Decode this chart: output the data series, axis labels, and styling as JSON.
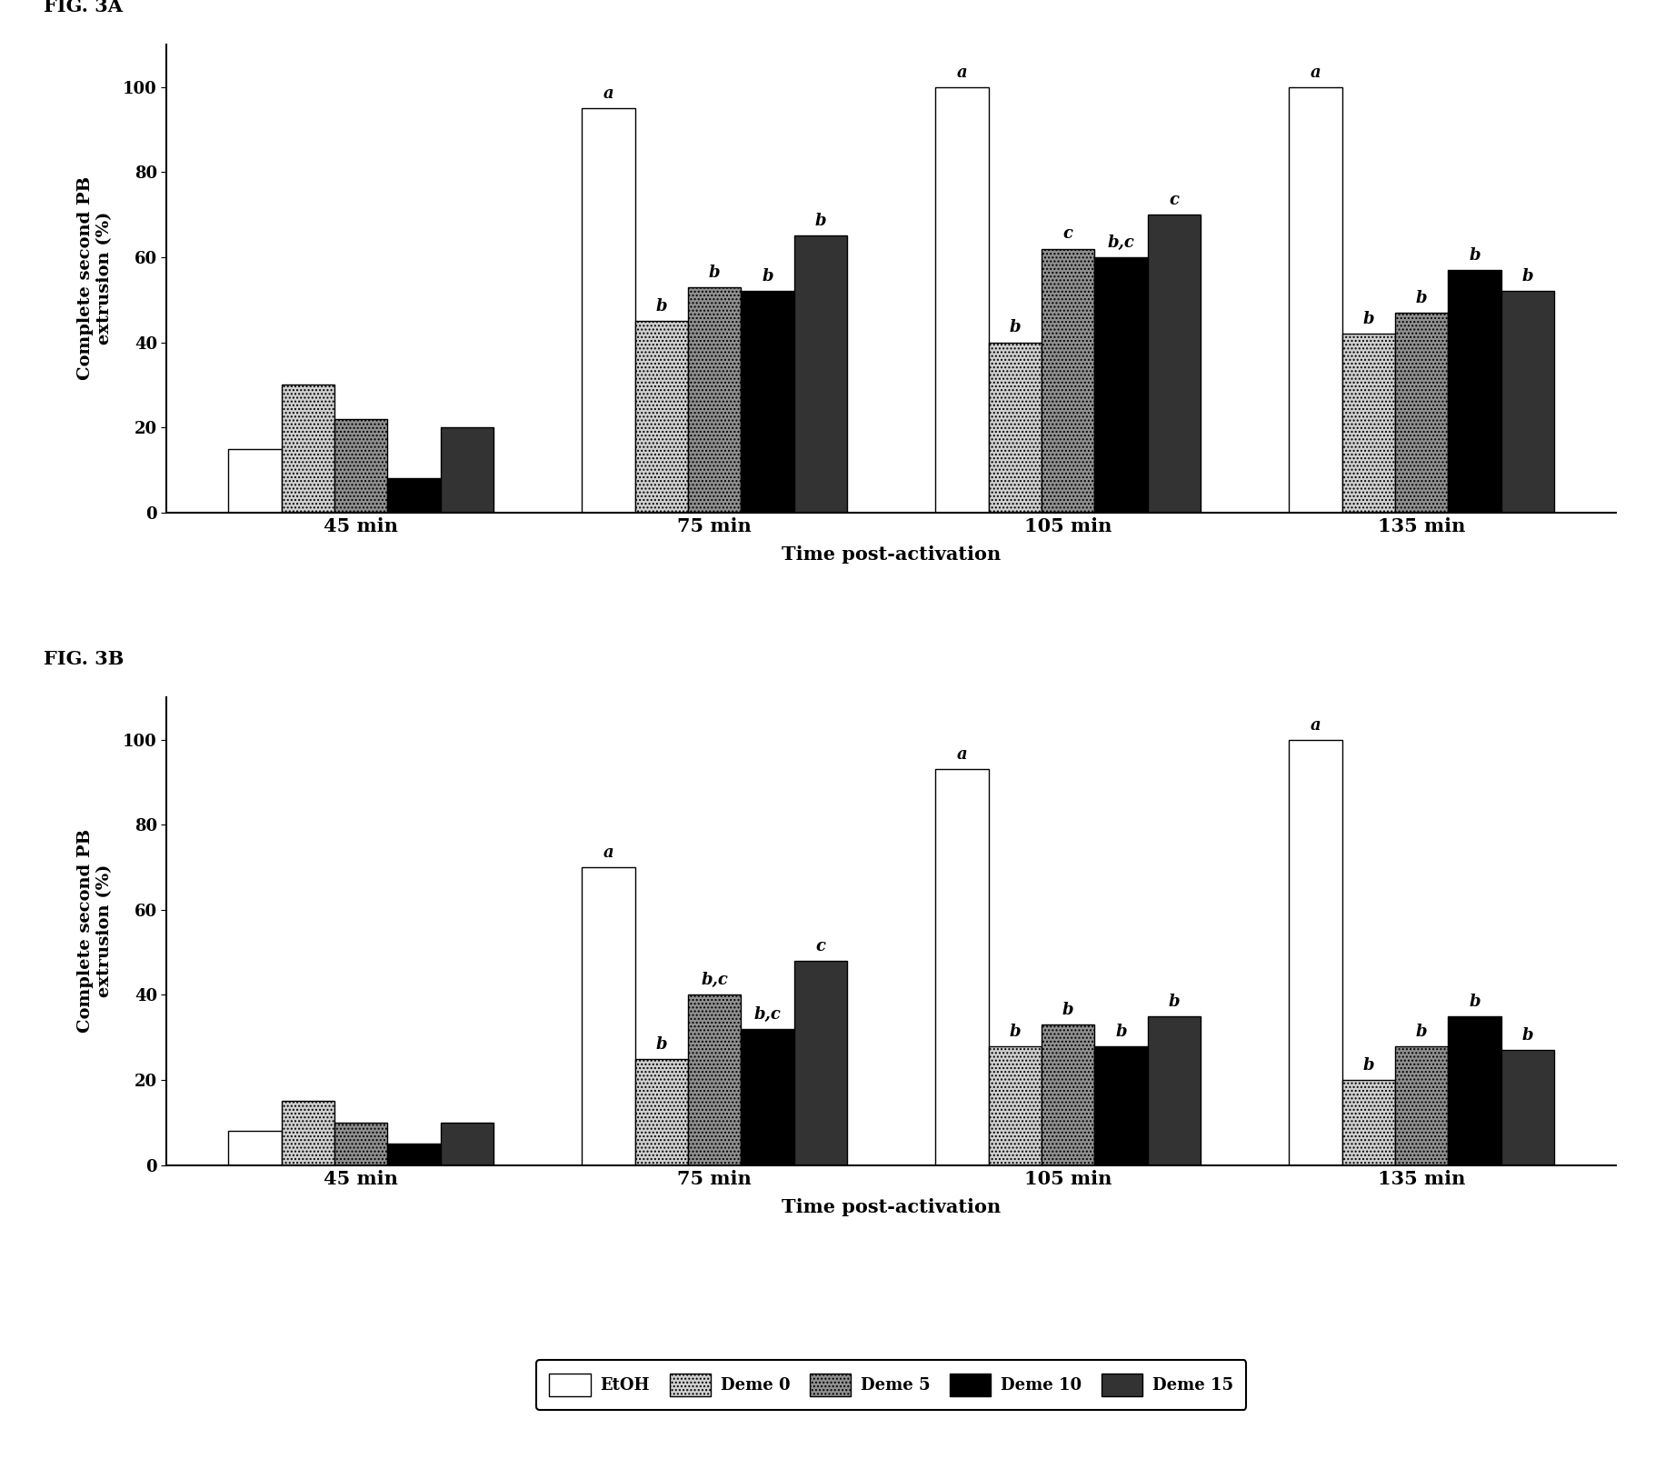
{
  "fig3a": {
    "groups": [
      "45 min",
      "75 min",
      "105 min",
      "135 min"
    ],
    "series": {
      "EtOH": [
        15,
        95,
        100,
        100
      ],
      "Deme 0": [
        30,
        45,
        40,
        42
      ],
      "Deme 5": [
        22,
        53,
        62,
        47
      ],
      "Deme 10": [
        8,
        52,
        60,
        57
      ],
      "Deme 15": [
        20,
        65,
        70,
        52
      ]
    },
    "annotations": {
      "EtOH": [
        "",
        "a",
        "a",
        "a"
      ],
      "Deme 0": [
        "",
        "b",
        "b",
        "b"
      ],
      "Deme 5": [
        "",
        "b",
        "c",
        "b"
      ],
      "Deme 10": [
        "",
        "b",
        "b,c",
        "b"
      ],
      "Deme 15": [
        "",
        "b",
        "c",
        "b"
      ]
    },
    "title": "FIG. 3A",
    "ylabel": "Complete second PB\nextrusion (%)",
    "xlabel": "Time post-activation"
  },
  "fig3b": {
    "groups": [
      "45 min",
      "75 min",
      "105 min",
      "135 min"
    ],
    "series": {
      "EtOH": [
        8,
        70,
        93,
        100
      ],
      "Deme 0": [
        15,
        25,
        28,
        20
      ],
      "Deme 5": [
        10,
        40,
        33,
        28
      ],
      "Deme 10": [
        5,
        32,
        28,
        35
      ],
      "Deme 15": [
        10,
        48,
        35,
        27
      ]
    },
    "annotations": {
      "EtOH": [
        "",
        "a",
        "a",
        "a"
      ],
      "Deme 0": [
        "",
        "b",
        "b",
        "b"
      ],
      "Deme 5": [
        "",
        "b,c",
        "b",
        "b"
      ],
      "Deme 10": [
        "",
        "b,c",
        "b",
        "b"
      ],
      "Deme 15": [
        "",
        "c",
        "b",
        "b"
      ]
    },
    "title": "FIG. 3B",
    "ylabel": "Complete second PB\nextrusion (%)",
    "xlabel": "Time post-activation"
  },
  "legend_labels": [
    "EtOH",
    "Deme 0",
    "Deme 5",
    "Deme 10",
    "Deme 15"
  ],
  "ylim": [
    0,
    110
  ],
  "yticks": [
    0,
    20,
    40,
    60,
    80,
    100
  ],
  "background_color": "white",
  "annotation_fontsize": 13,
  "label_fontsize": 14,
  "tick_fontsize": 13,
  "title_fontsize": 15,
  "legend_fontsize": 13
}
